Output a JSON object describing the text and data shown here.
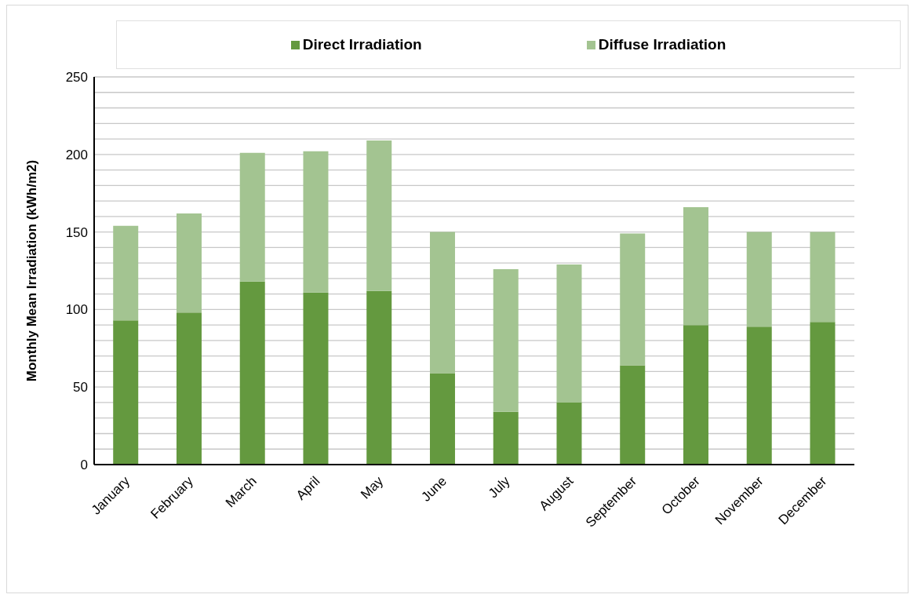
{
  "chart_data": {
    "type": "bar",
    "stacked": true,
    "ylabel": "Monthly Mean Irradiation (kWh/m2)",
    "categories": [
      "January",
      "February",
      "March",
      "April",
      "May",
      "June",
      "July",
      "August",
      "September",
      "October",
      "November",
      "December"
    ],
    "series": [
      {
        "name": "Direct Irradiation",
        "color": "#64993f",
        "values": [
          93,
          98,
          118,
          111,
          112,
          59,
          34,
          40,
          64,
          90,
          89,
          92
        ]
      },
      {
        "name": "Diffuse Irradiation",
        "color": "#a3c491",
        "values": [
          61,
          64,
          83,
          91,
          97,
          91,
          92,
          89,
          85,
          76,
          61,
          58
        ]
      }
    ],
    "ylim": [
      0,
      250
    ],
    "yticks": [
      0,
      {
        "value": 10,
        "label": null
      },
      {
        "value": 20,
        "label": null
      },
      {
        "value": 30,
        "label": null
      },
      {
        "value": 40,
        "label": null
      },
      50,
      {
        "value": 60,
        "label": null
      },
      {
        "value": 70,
        "label": null
      },
      {
        "value": 80,
        "label": null
      },
      {
        "value": 90,
        "label": null
      },
      100,
      {
        "value": 110,
        "label": null
      },
      {
        "value": 120,
        "label": null
      },
      {
        "value": 130,
        "label": null
      },
      {
        "value": 140,
        "label": null
      },
      150,
      {
        "value": 160,
        "label": null
      },
      {
        "value": 170,
        "label": null
      },
      {
        "value": 180,
        "label": null
      },
      {
        "value": 190,
        "label": null
      },
      200,
      {
        "value": 210,
        "label": null
      },
      {
        "value": 220,
        "label": null
      },
      {
        "value": 230,
        "label": null
      },
      {
        "value": 240,
        "label": null
      },
      250
    ],
    "grid": "y",
    "legend": "top"
  }
}
